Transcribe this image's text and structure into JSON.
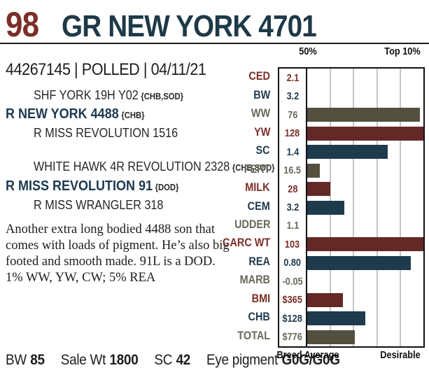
{
  "header": {
    "lot": "98",
    "title": "GR NEW YORK 4701",
    "registration": "44267145 | POLLED | 04/11/21"
  },
  "palette": {
    "lot_maroon": "#7B2F28",
    "title_navy": "#1E3948"
  },
  "pedigree": {
    "sire": {
      "top": "SHF YORK 19H Y02",
      "top_tag": "{CHB,SOD}",
      "name": "R NEW YORK 4488",
      "name_tag": "{CHB}",
      "bottom": "R MISS REVOLUTION 1516",
      "bottom_tag": ""
    },
    "dam": {
      "top": "WHITE HAWK 4R REVOLUTION 2328",
      "top_tag": "{CHB,SOD}",
      "name": "R MISS REVOLUTION 91",
      "name_tag": "{DOD}",
      "bottom": "R MISS WRANGLER 318",
      "bottom_tag": ""
    }
  },
  "description": {
    "lines": [
      "Another extra long bodied 4488 son that",
      "comes with loads of pigment. He’s also big",
      "footed and smooth made. 91L is a DOD.",
      "1% WW, YW, CW; 5% REA"
    ]
  },
  "footer": {
    "stats": [
      {
        "label": "BW",
        "value": "85"
      },
      {
        "label": "Sale Wt",
        "value": "1800"
      },
      {
        "label": "SC",
        "value": "42"
      },
      {
        "label": "Eye pigment",
        "value": "G0G/G0G"
      }
    ]
  },
  "chart_data": {
    "type": "bar",
    "orientation": "horizontal",
    "top_labels": [
      "50%",
      "Top 10%"
    ],
    "bottom_labels": [
      "Breed Average",
      "Desirable"
    ],
    "grid_percents": [
      20,
      40,
      60,
      80
    ],
    "colors": {
      "red": "#632927",
      "navy": "#1E3A4D",
      "olive": "#54503F"
    },
    "label_colors": {
      "red": "#7B2E27",
      "navy": "#1F3A4D",
      "olive": "#6B675B"
    },
    "rows": [
      {
        "label": "CED",
        "value": "2.1",
        "bar_pct": 0,
        "color": "red"
      },
      {
        "label": "BW",
        "value": "3.2",
        "bar_pct": 0,
        "color": "navy"
      },
      {
        "label": "WW",
        "value": "76",
        "bar_pct": 97,
        "color": "olive"
      },
      {
        "label": "YW",
        "value": "128",
        "bar_pct": 100,
        "color": "red"
      },
      {
        "label": "SC",
        "value": "1.4",
        "bar_pct": 69,
        "color": "navy"
      },
      {
        "label": "FERT",
        "value": "16.5",
        "bar_pct": 11,
        "color": "olive"
      },
      {
        "label": "MILK",
        "value": "28",
        "bar_pct": 20,
        "color": "red"
      },
      {
        "label": "CEM",
        "value": "3.2",
        "bar_pct": 32,
        "color": "navy"
      },
      {
        "label": "UDDER",
        "value": "1.1",
        "bar_pct": 0,
        "color": "olive"
      },
      {
        "label": "CARC WT",
        "value": "103",
        "bar_pct": 100,
        "color": "red"
      },
      {
        "label": "REA",
        "value": "0.80",
        "bar_pct": 89,
        "color": "navy"
      },
      {
        "label": "MARB",
        "value": "-0.05",
        "bar_pct": 0,
        "color": "olive"
      },
      {
        "label": "BMI",
        "value": "$365",
        "bar_pct": 31,
        "color": "red"
      },
      {
        "label": "CHB",
        "value": "$128",
        "bar_pct": 50,
        "color": "navy"
      },
      {
        "label": "TOTAL",
        "value": "$776",
        "bar_pct": 41,
        "color": "olive"
      }
    ]
  }
}
